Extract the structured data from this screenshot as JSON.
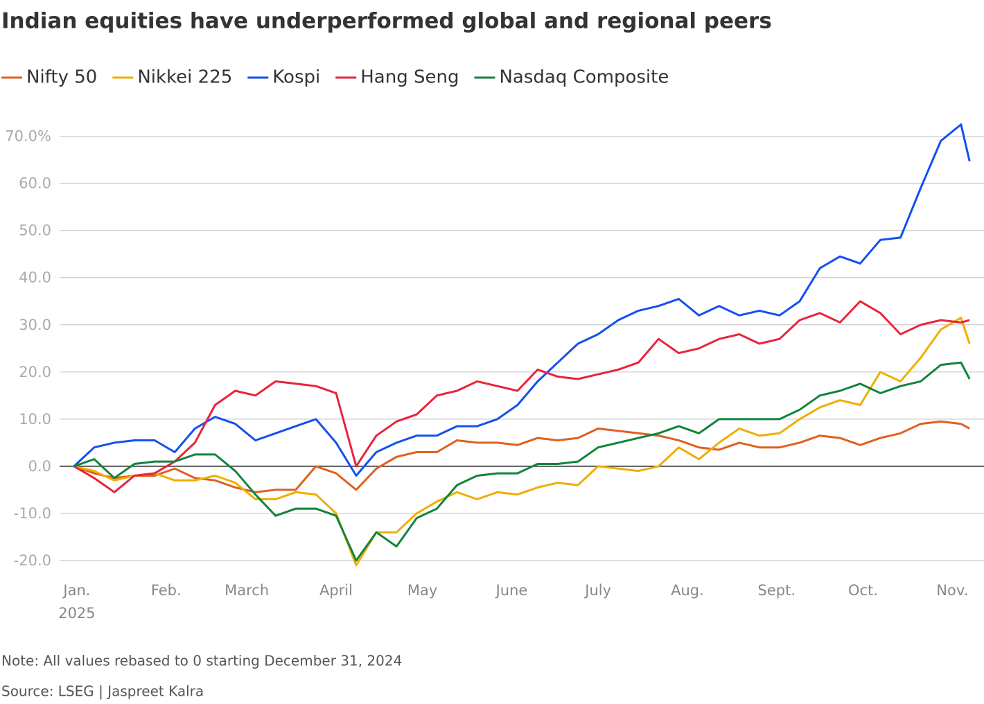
{
  "chart_data": {
    "type": "line",
    "title": "Indian equities have underperformed global and regional peers",
    "note": "Note: All values rebased to 0 starting December 31, 2024",
    "source": "Source: LSEG | Jaspreet Kalra",
    "xtick_sublabel": "2025",
    "x": [
      0,
      7,
      14,
      21,
      28,
      35,
      42,
      49,
      56,
      63,
      70,
      77,
      84,
      91,
      98,
      105,
      112,
      119,
      126,
      133,
      140,
      147,
      154,
      161,
      168,
      175,
      182,
      189,
      196,
      203,
      210,
      217,
      224,
      231,
      238,
      245,
      252,
      259,
      266,
      273,
      280,
      287,
      294,
      301,
      308,
      311
    ],
    "xlim": [
      -5,
      316
    ],
    "xticks": [
      {
        "value": 1,
        "label": "Jan."
      },
      {
        "value": 32,
        "label": "Feb."
      },
      {
        "value": 60,
        "label": "March"
      },
      {
        "value": 91,
        "label": "April"
      },
      {
        "value": 121,
        "label": "May"
      },
      {
        "value": 152,
        "label": "June"
      },
      {
        "value": 182,
        "label": "July"
      },
      {
        "value": 213,
        "label": "Aug."
      },
      {
        "value": 244,
        "label": "Sept."
      },
      {
        "value": 274,
        "label": "Oct."
      },
      {
        "value": 305,
        "label": "Nov."
      }
    ],
    "ylim": [
      -25,
      77
    ],
    "yticks": [
      {
        "value": -20,
        "label": "-20.0"
      },
      {
        "value": -10,
        "label": "-10.0"
      },
      {
        "value": 0,
        "label": "0.0"
      },
      {
        "value": 10,
        "label": "10.0"
      },
      {
        "value": 20,
        "label": "20.0"
      },
      {
        "value": 30,
        "label": "30.0"
      },
      {
        "value": 40,
        "label": "40.0"
      },
      {
        "value": 50,
        "label": "50.0"
      },
      {
        "value": 60,
        "label": "60.0"
      },
      {
        "value": 70,
        "label": "70.0%"
      }
    ],
    "grid": true,
    "series": [
      {
        "name": "Nifty 50",
        "color": "#e0601e",
        "values": [
          0,
          -1.5,
          -2.5,
          -2,
          -2,
          -0.5,
          -2.5,
          -3,
          -4.5,
          -5.5,
          -5,
          -5,
          0,
          -1.5,
          -5,
          -0.5,
          2,
          3,
          3,
          5.5,
          5,
          5,
          4.5,
          6,
          5.5,
          6,
          8,
          7.5,
          7,
          6.5,
          5.5,
          4,
          3.5,
          5,
          4,
          4,
          5,
          6.5,
          6,
          4.5,
          6,
          7,
          9,
          9.5,
          9,
          8
        ]
      },
      {
        "name": "Nikkei 225",
        "color": "#f0ae00",
        "values": [
          0,
          -1,
          -3,
          -2,
          -1.5,
          -3,
          -3,
          -2,
          -3.5,
          -7,
          -7,
          -5.5,
          -6,
          -10,
          -21,
          -14,
          -14,
          -10,
          -7.5,
          -5.5,
          -7,
          -5.5,
          -6,
          -4.5,
          -3.5,
          -4,
          0,
          -0.5,
          -1,
          0,
          4,
          1.5,
          5,
          8,
          6.5,
          7,
          10,
          12.5,
          14,
          13,
          20,
          18,
          23,
          29,
          31.5,
          26
        ]
      },
      {
        "name": "Kospi",
        "color": "#1450f0",
        "values": [
          0,
          4,
          5,
          5.5,
          5.5,
          3,
          8,
          10.5,
          9,
          5.5,
          7,
          8.5,
          10,
          5,
          -2,
          3,
          5,
          6.5,
          6.5,
          8.5,
          8.5,
          10,
          13,
          18,
          22,
          26,
          28,
          31,
          33,
          34,
          35.5,
          32,
          34,
          32,
          33,
          32,
          35,
          42,
          44.5,
          43,
          48,
          48.5,
          59,
          69,
          72.5,
          64.7
        ]
      },
      {
        "name": "Hang Seng",
        "color": "#e8243c",
        "values": [
          0,
          -2.5,
          -5.5,
          -2,
          -1.5,
          1,
          5,
          13,
          16,
          15,
          18,
          17.5,
          17,
          15.5,
          0,
          6.5,
          9.5,
          11,
          15,
          16,
          18,
          17,
          16,
          20.5,
          19,
          18.5,
          19.5,
          20.5,
          22,
          27,
          24,
          25,
          27,
          28,
          26,
          27,
          31,
          32.5,
          30.5,
          35,
          32.5,
          28,
          30,
          31,
          30.5,
          31
        ]
      },
      {
        "name": "Nasdaq Composite",
        "color": "#12843c",
        "values": [
          0,
          1.5,
          -2.5,
          0.5,
          1,
          1,
          2.5,
          2.5,
          -1,
          -6,
          -10.5,
          -9,
          -9,
          -10.5,
          -20,
          -14,
          -17,
          -11,
          -9,
          -4,
          -2,
          -1.5,
          -1.5,
          0.5,
          0.5,
          1,
          4,
          5,
          6,
          7,
          8.5,
          7,
          10,
          10,
          10,
          10,
          12,
          15,
          16,
          17.5,
          15.5,
          17,
          18,
          21.5,
          22,
          18.5
        ]
      }
    ]
  }
}
